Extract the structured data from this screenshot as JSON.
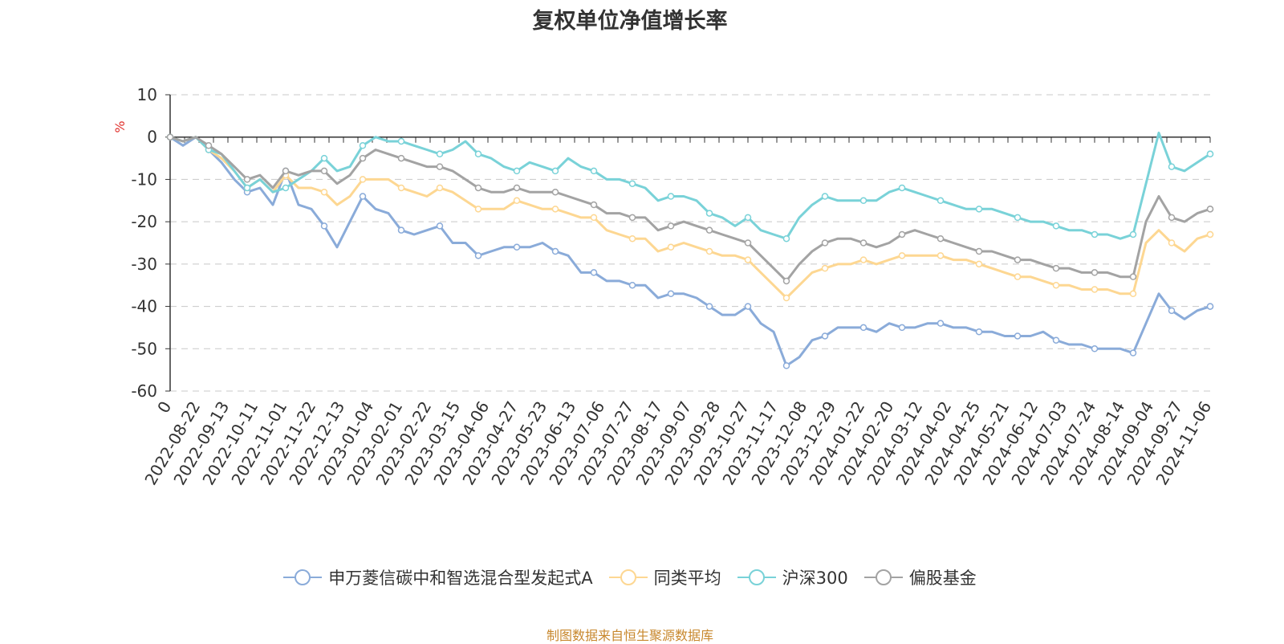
{
  "chart_data": {
    "type": "line",
    "title": "复权单位净值增长率",
    "ylabel": "%",
    "ylim": [
      -60,
      10
    ],
    "yticks": [
      10,
      0,
      -10,
      -20,
      -30,
      -40,
      -50,
      -60
    ],
    "grid": true,
    "legend_position": "bottom",
    "x_ticks": [
      "0",
      "2022-08-22",
      "2022-09-13",
      "2022-10-11",
      "2022-11-01",
      "2022-11-22",
      "2022-12-13",
      "2023-01-04",
      "2023-02-01",
      "2023-02-22",
      "2023-03-15",
      "2023-04-06",
      "2023-04-27",
      "2023-05-23",
      "2023-06-13",
      "2023-07-06",
      "2023-07-27",
      "2023-08-17",
      "2023-09-07",
      "2023-09-28",
      "2023-10-27",
      "2023-11-17",
      "2023-12-08",
      "2023-12-29",
      "2024-01-22",
      "2024-02-20",
      "2024-03-12",
      "2024-04-02",
      "2024-04-25",
      "2024-05-21",
      "2024-06-12",
      "2024-07-03",
      "2024-07-24",
      "2024-08-14",
      "2024-09-04",
      "2024-09-27",
      "2024-11-06"
    ],
    "series": [
      {
        "name": "申万菱信碳中和智选混合型发起式A",
        "color": "#8aabd9",
        "values": [
          0,
          -2,
          0,
          -3,
          -6,
          -10,
          -13,
          -12,
          -16,
          -8,
          -16,
          -17,
          -21,
          -26,
          -20,
          -14,
          -17,
          -18,
          -22,
          -23,
          -22,
          -21,
          -25,
          -25,
          -28,
          -27,
          -26,
          -26,
          -26,
          -25,
          -27,
          -28,
          -32,
          -32,
          -34,
          -34,
          -35,
          -35,
          -38,
          -37,
          -37,
          -38,
          -40,
          -42,
          -42,
          -40,
          -44,
          -46,
          -54,
          -52,
          -48,
          -47,
          -45,
          -45,
          -45,
          -46,
          -44,
          -45,
          -45,
          -44,
          -44,
          -45,
          -45,
          -46,
          -46,
          -47,
          -47,
          -47,
          -46,
          -48,
          -49,
          -49,
          -50,
          -50,
          -50,
          -51,
          -44,
          -37,
          -41,
          -43,
          -41,
          -40
        ]
      },
      {
        "name": "同类平均",
        "color": "#fdd792",
        "values": [
          0,
          -1,
          0,
          -3,
          -5,
          -8,
          -12,
          -10,
          -13,
          -9,
          -12,
          -12,
          -13,
          -16,
          -14,
          -10,
          -10,
          -10,
          -12,
          -13,
          -14,
          -12,
          -13,
          -15,
          -17,
          -17,
          -17,
          -15,
          -16,
          -17,
          -17,
          -18,
          -19,
          -19,
          -22,
          -23,
          -24,
          -24,
          -27,
          -26,
          -25,
          -26,
          -27,
          -28,
          -28,
          -29,
          -32,
          -35,
          -38,
          -35,
          -32,
          -31,
          -30,
          -30,
          -29,
          -30,
          -29,
          -28,
          -28,
          -28,
          -28,
          -29,
          -29,
          -30,
          -31,
          -32,
          -33,
          -33,
          -34,
          -35,
          -35,
          -36,
          -36,
          -36,
          -37,
          -37,
          -25,
          -22,
          -25,
          -27,
          -24,
          -23
        ]
      },
      {
        "name": "沪深300",
        "color": "#79d2d8",
        "values": [
          0,
          -1,
          0,
          -3,
          -4,
          -8,
          -12,
          -10,
          -13,
          -12,
          -10,
          -8,
          -5,
          -8,
          -7,
          -2,
          0,
          -1,
          -1,
          -2,
          -3,
          -4,
          -3,
          -1,
          -4,
          -5,
          -7,
          -8,
          -6,
          -7,
          -8,
          -5,
          -7,
          -8,
          -10,
          -10,
          -11,
          -12,
          -15,
          -14,
          -14,
          -15,
          -18,
          -19,
          -21,
          -19,
          -22,
          -23,
          -24,
          -19,
          -16,
          -14,
          -15,
          -15,
          -15,
          -15,
          -13,
          -12,
          -13,
          -14,
          -15,
          -16,
          -17,
          -17,
          -17,
          -18,
          -19,
          -20,
          -20,
          -21,
          -22,
          -22,
          -23,
          -23,
          -24,
          -23,
          -11,
          1,
          -7,
          -8,
          -6,
          -4
        ]
      },
      {
        "name": "偏股基金",
        "color": "#a3a3a3",
        "values": [
          0,
          -1,
          0,
          -2,
          -4,
          -7,
          -10,
          -9,
          -12,
          -8,
          -9,
          -8,
          -8,
          -11,
          -9,
          -5,
          -3,
          -4,
          -5,
          -6,
          -7,
          -7,
          -8,
          -10,
          -12,
          -13,
          -13,
          -12,
          -13,
          -13,
          -13,
          -14,
          -15,
          -16,
          -18,
          -18,
          -19,
          -19,
          -22,
          -21,
          -20,
          -21,
          -22,
          -23,
          -24,
          -25,
          -28,
          -31,
          -34,
          -30,
          -27,
          -25,
          -24,
          -24,
          -25,
          -26,
          -25,
          -23,
          -22,
          -23,
          -24,
          -25,
          -26,
          -27,
          -27,
          -28,
          -29,
          -29,
          -30,
          -31,
          -31,
          -32,
          -32,
          -32,
          -33,
          -33,
          -20,
          -14,
          -19,
          -20,
          -18,
          -17
        ]
      }
    ]
  },
  "source_note": "制图数据来自恒生聚源数据库"
}
